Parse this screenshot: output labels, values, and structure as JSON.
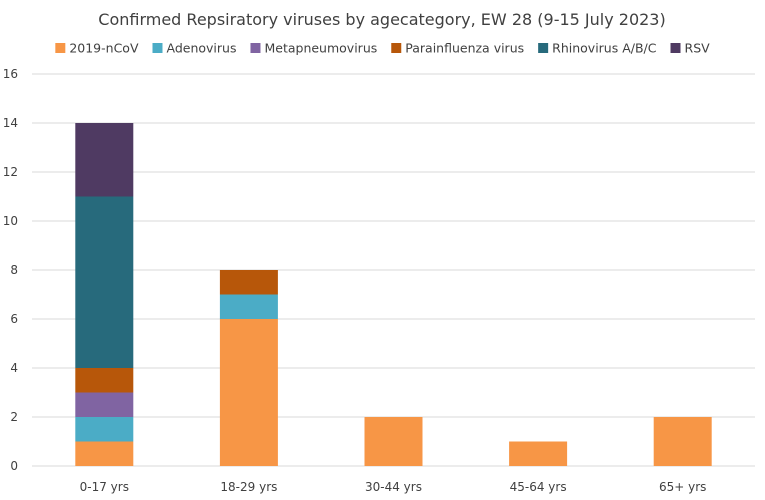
{
  "chart_data": {
    "type": "bar",
    "stacked": true,
    "title": "Confirmed Repsiratory viruses by agecategory, EW 28 (9-15 July 2023)",
    "xlabel": "",
    "ylabel": "",
    "ylim": [
      0,
      16
    ],
    "yticks": [
      0,
      2,
      4,
      6,
      8,
      10,
      12,
      14,
      16
    ],
    "grid": true,
    "legend_position": "top",
    "categories": [
      "0-17 yrs",
      "18-29 yrs",
      "30-44 yrs",
      "45-64 yrs",
      "65+ yrs"
    ],
    "series": [
      {
        "name": "2019-nCoV",
        "color": "#f79646",
        "values": [
          1,
          6,
          2,
          1,
          2
        ]
      },
      {
        "name": "Adenovirus",
        "color": "#4bacc6",
        "values": [
          1,
          1,
          0,
          0,
          0
        ]
      },
      {
        "name": "Metapneumovirus",
        "color": "#8064a2",
        "values": [
          1,
          0,
          0,
          0,
          0
        ]
      },
      {
        "name": "Parainfluenza virus",
        "color": "#b7570a",
        "values": [
          1,
          1,
          0,
          0,
          0
        ]
      },
      {
        "name": "Rhinovirus A/B/C",
        "color": "#276a7c",
        "values": [
          7,
          0,
          0,
          0,
          0
        ]
      },
      {
        "name": "RSV",
        "color": "#4f3a62",
        "values": [
          3,
          0,
          0,
          0,
          0
        ]
      }
    ]
  }
}
